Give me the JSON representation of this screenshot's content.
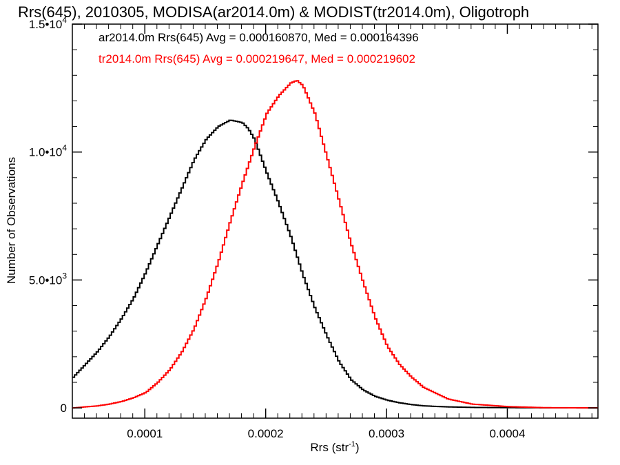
{
  "chart_data": {
    "type": "line",
    "step": true,
    "title": "Rrs(645), 2010305, MODISA(ar2014.0m) & MODIST(tr2014.0m), Oligotroph",
    "xlabel": {
      "main": "Rrs (str",
      "sup": "-1",
      "close": ")"
    },
    "ylabel": "Number of Observations",
    "xlim": [
      4e-05,
      0.000475
    ],
    "ylim": [
      -400,
      15000
    ],
    "x_ticks": [
      {
        "value": 0.0001,
        "label": "0.0001"
      },
      {
        "value": 0.0002,
        "label": "0.0002"
      },
      {
        "value": 0.0003,
        "label": "0.0003"
      },
      {
        "value": 0.0004,
        "label": "0.0004"
      }
    ],
    "y_ticks": [
      {
        "value": 0,
        "label": "0",
        "sup": ""
      },
      {
        "value": 5000,
        "label": "5.0•10",
        "sup": "3"
      },
      {
        "value": 10000,
        "label": "1.0•10",
        "sup": "4"
      },
      {
        "value": 15000,
        "label": "1.5•10",
        "sup": "4"
      }
    ],
    "annotations": [
      "ar2014.0m Rrs(645) Avg = 0.000160870, Med = 0.000164396",
      "tr2014.0m Rrs(645) Avg = 0.000219647, Med = 0.000219602"
    ],
    "series": [
      {
        "color": "#000000",
        "x": [
          4e-05,
          5e-05,
          6e-05,
          7e-05,
          8e-05,
          9e-05,
          0.0001,
          0.00011,
          0.00012,
          0.00013,
          0.00014,
          0.00015,
          0.00016,
          0.00017,
          0.00018,
          0.000185,
          0.00019,
          0.0002,
          0.00021,
          0.00022,
          0.00023,
          0.00024,
          0.00025,
          0.00026,
          0.00027,
          0.00028,
          0.00029,
          0.0003,
          0.00031,
          0.00032,
          0.00033,
          0.00035,
          0.00037,
          0.0004,
          0.00043,
          0.000475
        ],
        "y": [
          1200,
          1700,
          2200,
          2800,
          3500,
          4300,
          5300,
          6400,
          7500,
          8600,
          9700,
          10500,
          11000,
          11250,
          11150,
          10900,
          10500,
          9200,
          8000,
          6700,
          5200,
          3900,
          2800,
          1800,
          1100,
          700,
          450,
          300,
          200,
          130,
          80,
          40,
          20,
          10,
          5,
          0
        ]
      },
      {
        "color": "#ff0000",
        "x": [
          4e-05,
          5e-05,
          6e-05,
          7e-05,
          8e-05,
          9e-05,
          0.0001,
          0.00011,
          0.00012,
          0.00013,
          0.00014,
          0.00015,
          0.00016,
          0.00017,
          0.00018,
          0.00019,
          0.0002,
          0.00021,
          0.00022,
          0.000225,
          0.00023,
          0.00024,
          0.00025,
          0.00026,
          0.00027,
          0.00028,
          0.00029,
          0.0003,
          0.00031,
          0.00032,
          0.00033,
          0.00035,
          0.00037,
          0.0004,
          0.00043,
          0.000475
        ],
        "y": [
          0,
          40,
          80,
          150,
          250,
          400,
          600,
          1000,
          1500,
          2200,
          3100,
          4300,
          5700,
          7300,
          8800,
          10200,
          11500,
          12200,
          12700,
          12800,
          12600,
          11500,
          9800,
          8100,
          6400,
          4900,
          3500,
          2400,
          1700,
          1200,
          800,
          350,
          150,
          50,
          10,
          0
        ]
      }
    ]
  }
}
